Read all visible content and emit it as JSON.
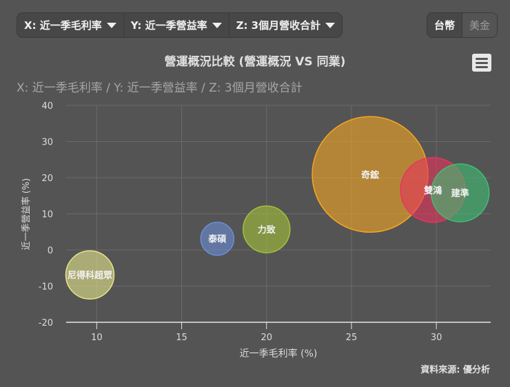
{
  "toolbar": {
    "x_dropdown": "X: 近一季毛利率",
    "y_dropdown": "Y: 近一季營益率",
    "z_dropdown": "Z: 3個月營收合計",
    "currency_options": [
      "台幣",
      "美金"
    ],
    "currency_selected": "台幣"
  },
  "menu_icon": "hamburger-menu-icon",
  "source": "資料來源: 優分析",
  "colors": {
    "background": "#545454",
    "grid": "#6a6a6a",
    "axis": "#e6e6e6"
  },
  "chart_data": {
    "type": "scatter",
    "subtype": "bubble",
    "title": "營運概況比較 (營運概況 VS 同業)",
    "subtitle": "X: 近一季毛利率 / Y: 近一季營益率 / Z: 3個月營收合計",
    "xlabel": "近一季毛利率 (%)",
    "ylabel": "近一季營益率 (%)",
    "xlim": [
      8.2,
      33.2
    ],
    "ylim": [
      -20,
      40
    ],
    "xticks": [
      10,
      15,
      20,
      25,
      30
    ],
    "yticks": [
      -20,
      -10,
      0,
      10,
      20,
      30,
      40
    ],
    "grid": true,
    "legend": "none",
    "series": [
      {
        "name": "尼得科超眾",
        "x": 9.6,
        "y": -6.9,
        "r": 35,
        "color": "#e6e68c"
      },
      {
        "name": "泰碩",
        "x": 17.1,
        "y": 3.1,
        "r": 24,
        "color": "#6b8fd6"
      },
      {
        "name": "力致",
        "x": 20.0,
        "y": 5.7,
        "r": 34,
        "color": "#a5c23a"
      },
      {
        "name": "奇鋐",
        "x": 26.1,
        "y": 20.9,
        "r": 84,
        "color": "#f5a623"
      },
      {
        "name": "雙鴻",
        "x": 29.8,
        "y": 16.6,
        "r": 47,
        "color": "#e8345e"
      },
      {
        "name": "建準",
        "x": 31.4,
        "y": 15.8,
        "r": 42,
        "color": "#3fbf74"
      }
    ]
  }
}
